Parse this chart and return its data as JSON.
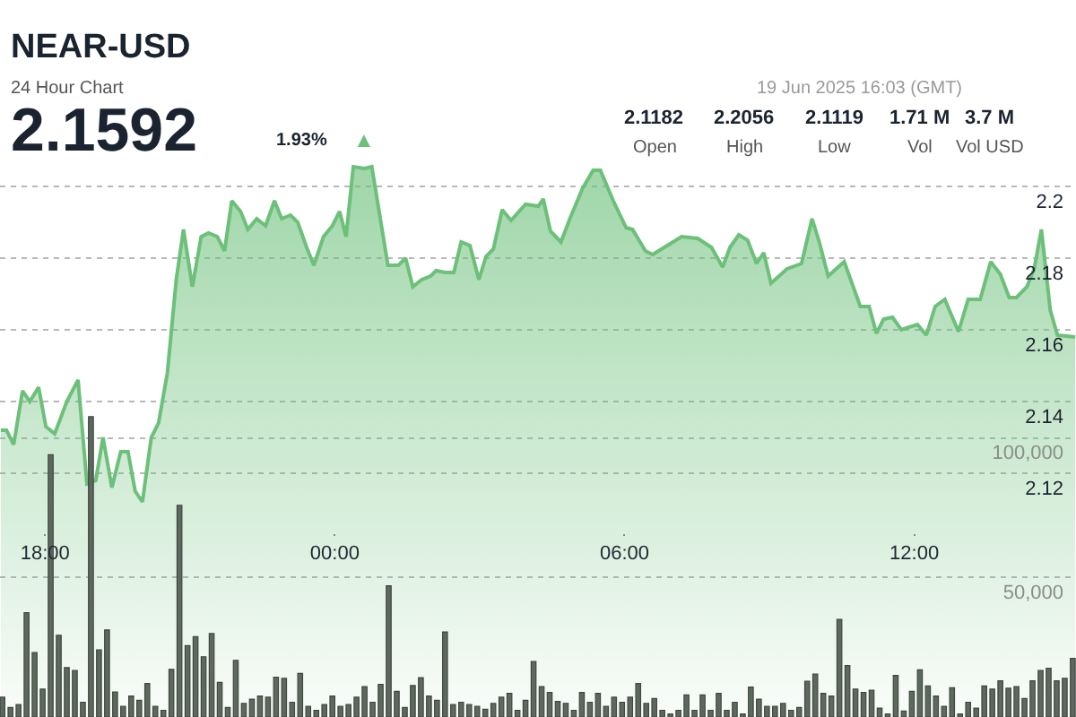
{
  "chart_data": {
    "type": "area",
    "title": "NEAR-USD",
    "subtitle": "24 Hour Chart",
    "annotations": [
      "2.1592",
      "1.93%",
      "▲",
      "19 Jun 2025 16:03 (GMT)",
      "2.1182",
      "Open",
      "2.2056",
      "High",
      "2.1119",
      "Low",
      "1.71 M",
      "Vol",
      "3.7 M",
      "Vol USD"
    ],
    "xlim": [
      "2025-06-18T17:04",
      "2025-06-19T15:21"
    ],
    "xticks": [
      {
        "value": "2025-06-18T18:00",
        "label": "18:00"
      },
      {
        "value": "2025-06-19T00:00",
        "label": "00:00"
      },
      {
        "value": "2025-06-19T06:00",
        "label": "06:00"
      },
      {
        "value": "2025-06-19T12:00",
        "label": "12:00"
      }
    ],
    "ylim": [
      2.052,
      2.252
    ],
    "yticks": [
      2.2,
      2.18,
      2.16,
      2.14,
      2.12
    ],
    "y2lim": [
      0,
      257000
    ],
    "y2ticks": [
      {
        "value": 50000,
        "label": "50,000"
      },
      {
        "value": 100000,
        "label": "100,000"
      }
    ],
    "grid": true,
    "series": [
      {
        "color": "#6cc07a",
        "x": [
          "2025-06-18T17:05",
          "2025-06-18T17:12",
          "2025-06-18T17:21",
          "2025-06-18T17:32",
          "2025-06-18T17:41",
          "2025-06-18T17:52",
          "2025-06-18T18:01",
          "2025-06-18T18:12",
          "2025-06-18T18:27",
          "2025-06-18T18:41",
          "2025-06-18T18:52",
          "2025-06-18T19:03",
          "2025-06-18T19:12",
          "2025-06-18T19:23",
          "2025-06-18T19:34",
          "2025-06-18T19:43",
          "2025-06-18T19:52",
          "2025-06-18T20:01",
          "2025-06-18T20:12",
          "2025-06-18T20:21",
          "2025-06-18T20:32",
          "2025-06-18T20:43",
          "2025-06-18T20:52",
          "2025-06-18T21:03",
          "2025-06-18T21:14",
          "2025-06-18T21:23",
          "2025-06-18T21:34",
          "2025-06-18T21:43",
          "2025-06-18T21:52",
          "2025-06-18T22:03",
          "2025-06-18T22:12",
          "2025-06-18T22:23",
          "2025-06-18T22:34",
          "2025-06-18T22:45",
          "2025-06-18T22:54",
          "2025-06-18T23:05",
          "2025-06-18T23:14",
          "2025-06-18T23:25",
          "2025-06-18T23:34",
          "2025-06-18T23:46",
          "2025-06-18T23:57",
          "2025-06-19T00:06",
          "2025-06-19T00:14",
          "2025-06-19T00:23",
          "2025-06-19T00:37",
          "2025-06-19T00:46",
          "2025-06-19T01:06",
          "2025-06-19T01:19",
          "2025-06-19T01:28",
          "2025-06-19T01:37",
          "2025-06-19T01:48",
          "2025-06-19T01:59",
          "2025-06-19T02:06",
          "2025-06-19T02:17",
          "2025-06-19T02:28",
          "2025-06-19T02:37",
          "2025-06-19T02:48",
          "2025-06-19T02:59",
          "2025-06-19T03:08",
          "2025-06-19T03:17",
          "2025-06-19T03:28",
          "2025-06-19T03:39",
          "2025-06-19T03:57",
          "2025-06-19T04:13",
          "2025-06-19T04:19",
          "2025-06-19T04:28",
          "2025-06-19T04:41",
          "2025-06-19T04:53",
          "2025-06-19T05:08",
          "2025-06-19T05:21",
          "2025-06-19T05:30",
          "2025-06-19T05:46",
          "2025-06-19T06:02",
          "2025-06-19T06:10",
          "2025-06-19T06:26",
          "2025-06-19T06:35",
          "2025-06-19T06:53",
          "2025-06-19T07:11",
          "2025-06-19T07:31",
          "2025-06-19T07:48",
          "2025-06-19T08:02",
          "2025-06-19T08:11",
          "2025-06-19T08:22",
          "2025-06-19T08:33",
          "2025-06-19T08:44",
          "2025-06-19T08:53",
          "2025-06-19T09:02",
          "2025-06-19T09:22",
          "2025-06-19T09:40",
          "2025-06-19T09:53",
          "2025-06-19T10:02",
          "2025-06-19T10:13",
          "2025-06-19T10:33",
          "2025-06-19T10:53",
          "2025-06-19T11:04",
          "2025-06-19T11:13",
          "2025-06-19T11:22",
          "2025-06-19T11:33",
          "2025-06-19T11:44",
          "2025-06-19T12:04",
          "2025-06-19T12:15",
          "2025-06-19T12:26",
          "2025-06-19T12:38",
          "2025-06-19T12:55",
          "2025-06-19T13:07",
          "2025-06-19T13:22",
          "2025-06-19T13:35",
          "2025-06-19T13:47",
          "2025-06-19T13:58",
          "2025-06-19T14:07",
          "2025-06-19T14:20",
          "2025-06-19T14:29",
          "2025-06-19T14:38",
          "2025-06-19T14:49",
          "2025-06-19T14:58",
          "2025-06-19T15:20"
        ],
        "values": [
          2.132,
          2.132,
          2.128,
          2.143,
          2.14,
          2.144,
          2.133,
          2.131,
          2.14,
          2.146,
          2.117,
          2.118,
          2.13,
          2.116,
          2.126,
          2.126,
          2.115,
          2.112,
          2.13,
          2.134,
          2.148,
          2.174,
          2.188,
          2.172,
          2.186,
          2.187,
          2.186,
          2.182,
          2.196,
          2.193,
          2.188,
          2.191,
          2.189,
          2.196,
          2.191,
          2.192,
          2.19,
          2.183,
          2.178,
          2.186,
          2.189,
          2.193,
          2.186,
          2.2055,
          2.205,
          2.2055,
          2.178,
          2.178,
          2.18,
          2.172,
          2.174,
          2.175,
          2.1765,
          2.176,
          2.176,
          2.1845,
          2.1835,
          2.174,
          2.1805,
          2.1825,
          2.1935,
          2.1905,
          2.195,
          2.1945,
          2.1965,
          2.1875,
          2.1845,
          2.1915,
          2.1995,
          2.2045,
          2.2045,
          2.196,
          2.1885,
          2.188,
          2.182,
          2.181,
          2.1835,
          2.186,
          2.1855,
          2.183,
          2.1775,
          2.183,
          2.1865,
          2.185,
          2.1785,
          2.1815,
          2.173,
          2.177,
          2.1785,
          2.191,
          2.1845,
          2.175,
          2.179,
          2.1665,
          2.1665,
          2.159,
          2.163,
          2.1635,
          2.16,
          2.1615,
          2.1585,
          2.1665,
          2.1685,
          2.1595,
          2.1685,
          2.1685,
          2.179,
          2.1755,
          2.169,
          2.169,
          2.172,
          2.177,
          2.188,
          2.1655,
          2.1585,
          2.158
        ]
      },
      {
        "type": "bar",
        "axis": "y2",
        "color": "#5d685e",
        "x": [
          "2025-06-18T17:07",
          "2025-06-18T17:17",
          "2025-06-18T17:27",
          "2025-06-18T17:37",
          "2025-06-18T17:47",
          "2025-06-18T17:57",
          "2025-06-18T18:07",
          "2025-06-18T18:17",
          "2025-06-18T18:27",
          "2025-06-18T18:37",
          "2025-06-18T18:47",
          "2025-06-18T18:57",
          "2025-06-18T19:07",
          "2025-06-18T19:17",
          "2025-06-18T19:27",
          "2025-06-18T19:37",
          "2025-06-18T19:47",
          "2025-06-18T19:57",
          "2025-06-18T20:07",
          "2025-06-18T20:17",
          "2025-06-18T20:27",
          "2025-06-18T20:37",
          "2025-06-18T20:47",
          "2025-06-18T20:57",
          "2025-06-18T21:07",
          "2025-06-18T21:17",
          "2025-06-18T21:27",
          "2025-06-18T21:37",
          "2025-06-18T21:47",
          "2025-06-18T21:57",
          "2025-06-18T22:07",
          "2025-06-18T22:17",
          "2025-06-18T22:27",
          "2025-06-18T22:37",
          "2025-06-18T22:47",
          "2025-06-18T22:57",
          "2025-06-18T23:07",
          "2025-06-18T23:17",
          "2025-06-18T23:27",
          "2025-06-18T23:37",
          "2025-06-18T23:47",
          "2025-06-18T23:57",
          "2025-06-19T00:07",
          "2025-06-19T00:17",
          "2025-06-19T00:27",
          "2025-06-19T00:37",
          "2025-06-19T00:47",
          "2025-06-19T00:57",
          "2025-06-19T01:07",
          "2025-06-19T01:17",
          "2025-06-19T01:27",
          "2025-06-19T01:37",
          "2025-06-19T01:47",
          "2025-06-19T01:57",
          "2025-06-19T02:07",
          "2025-06-19T02:17",
          "2025-06-19T02:27",
          "2025-06-19T02:37",
          "2025-06-19T02:47",
          "2025-06-19T02:57",
          "2025-06-19T03:07",
          "2025-06-19T03:17",
          "2025-06-19T03:27",
          "2025-06-19T03:37",
          "2025-06-19T03:47",
          "2025-06-19T03:57",
          "2025-06-19T04:07",
          "2025-06-19T04:17",
          "2025-06-19T04:27",
          "2025-06-19T04:37",
          "2025-06-19T04:47",
          "2025-06-19T04:57",
          "2025-06-19T05:07",
          "2025-06-19T05:17",
          "2025-06-19T05:27",
          "2025-06-19T05:37",
          "2025-06-19T05:47",
          "2025-06-19T05:57",
          "2025-06-19T06:07",
          "2025-06-19T06:17",
          "2025-06-19T06:27",
          "2025-06-19T06:37",
          "2025-06-19T06:47",
          "2025-06-19T06:57",
          "2025-06-19T07:07",
          "2025-06-19T07:17",
          "2025-06-19T07:27",
          "2025-06-19T07:37",
          "2025-06-19T07:47",
          "2025-06-19T07:57",
          "2025-06-19T08:07",
          "2025-06-19T08:17",
          "2025-06-19T08:27",
          "2025-06-19T08:37",
          "2025-06-19T08:47",
          "2025-06-19T08:57",
          "2025-06-19T09:07",
          "2025-06-19T09:17",
          "2025-06-19T09:27",
          "2025-06-19T09:37",
          "2025-06-19T09:47",
          "2025-06-19T09:57",
          "2025-06-19T10:07",
          "2025-06-19T10:17",
          "2025-06-19T10:27",
          "2025-06-19T10:37",
          "2025-06-19T10:47",
          "2025-06-19T10:57",
          "2025-06-19T11:07",
          "2025-06-19T11:17",
          "2025-06-19T11:27",
          "2025-06-19T11:37",
          "2025-06-19T11:47",
          "2025-06-19T11:57",
          "2025-06-19T12:07",
          "2025-06-19T12:17",
          "2025-06-19T12:27",
          "2025-06-19T12:37",
          "2025-06-19T12:47",
          "2025-06-19T12:57",
          "2025-06-19T13:07",
          "2025-06-19T13:17",
          "2025-06-19T13:27",
          "2025-06-19T13:37",
          "2025-06-19T13:47",
          "2025-06-19T13:57",
          "2025-06-19T14:07",
          "2025-06-19T14:17",
          "2025-06-19T14:27",
          "2025-06-19T14:37",
          "2025-06-19T14:47",
          "2025-06-19T14:57",
          "2025-06-19T15:07",
          "2025-06-19T15:17"
        ],
        "values": [
          7100,
          3400,
          4500,
          37400,
          23100,
          10000,
          94000,
          29300,
          17700,
          16700,
          5300,
          107700,
          24100,
          31200,
          9000,
          3800,
          7500,
          6000,
          12000,
          3800,
          2400,
          17100,
          75900,
          25600,
          28800,
          21600,
          29900,
          12400,
          3400,
          20300,
          4900,
          6400,
          7500,
          7100,
          14300,
          13900,
          5300,
          15600,
          3800,
          2400,
          4500,
          7500,
          3800,
          4500,
          7100,
          10900,
          5300,
          11700,
          47000,
          9200,
          3400,
          11300,
          14100,
          7500,
          6000,
          30500,
          4500,
          5300,
          4500,
          3800,
          2800,
          4900,
          7100,
          8500,
          2400,
          6000,
          19900,
          10900,
          8800,
          5600,
          4900,
          2400,
          8800,
          5300,
          8500,
          3800,
          7100,
          5300,
          7100,
          12000,
          4900,
          6600,
          2400,
          1100,
          2400,
          7900,
          2400,
          7900,
          2400,
          8500,
          2400,
          5300,
          1100,
          10700,
          6400,
          3800,
          3800,
          4900,
          2400,
          3400,
          12800,
          15400,
          8500,
          7500,
          35000,
          18400,
          10000,
          8800,
          9600,
          3200,
          1100,
          14900,
          2100,
          9200,
          16900,
          11100,
          7500,
          3800,
          10500,
          1100,
          5300,
          3200,
          11100,
          10000,
          13000,
          10300,
          10900,
          6600,
          13000,
          16700,
          17500,
          13000,
          13900,
          21000
        ]
      }
    ]
  }
}
